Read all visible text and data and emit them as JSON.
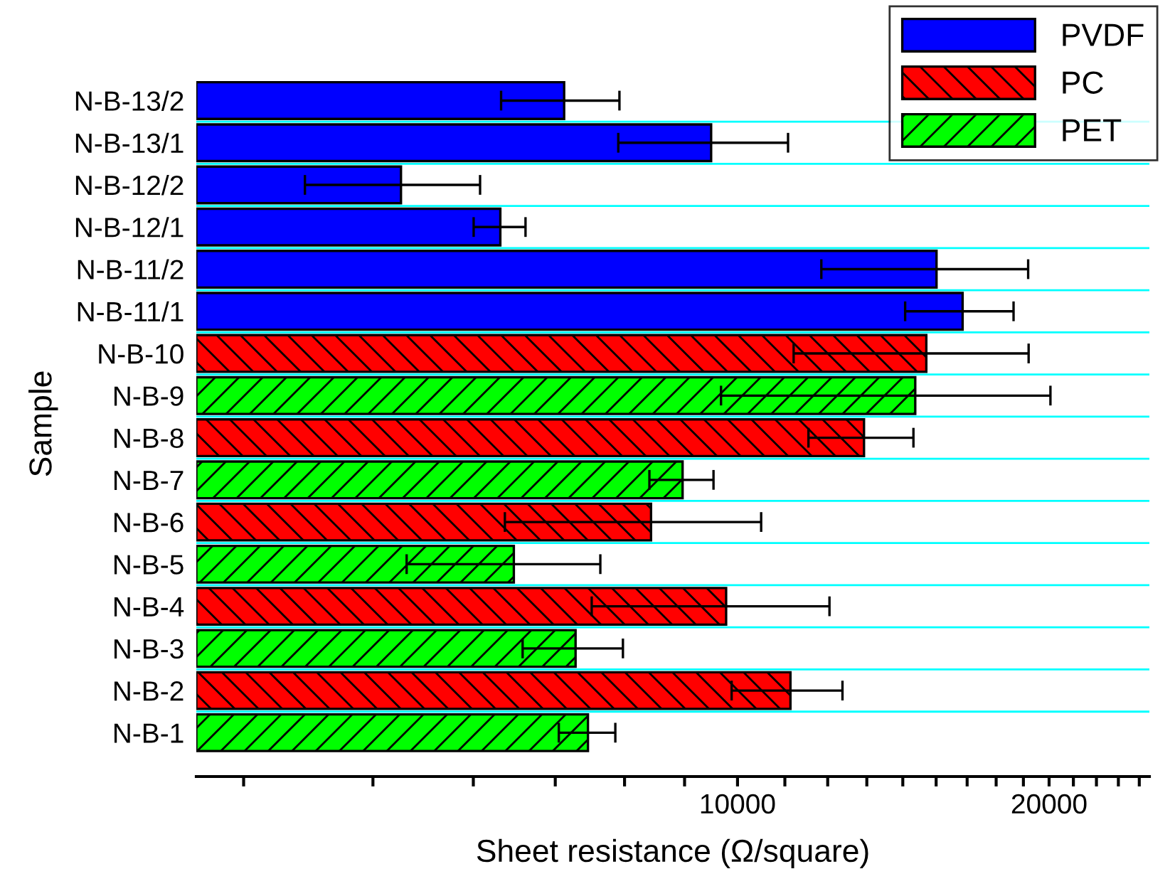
{
  "chart_data": {
    "type": "bar",
    "orientation": "horizontal",
    "log": "x",
    "xlabel": "Sheet resistance (Ω/square)",
    "ylabel": "Sample",
    "categories": [
      "N-B-13/2",
      "N-B-13/1",
      "N-B-12/2",
      "N-B-12/1",
      "N-B-11/2",
      "N-B-11/1",
      "N-B-10",
      "N-B-9",
      "N-B-8",
      "N-B-7",
      "N-B-6",
      "N-B-5",
      "N-B-4",
      "N-B-3",
      "N-B-2",
      "N-B-1"
    ],
    "series": [
      {
        "name": "PVDF",
        "color": "#0000ff",
        "values": [
          6800,
          9430,
          4730,
          5900,
          15570,
          16500,
          null,
          null,
          null,
          null,
          null,
          null,
          null,
          null,
          null,
          null
        ],
        "errors": [
          890,
          1760,
          910,
          340,
          3520,
          1980,
          null,
          null,
          null,
          null,
          null,
          null,
          null,
          null,
          null,
          null
        ]
      },
      {
        "name": "PC",
        "color": "#ff0000",
        "values": [
          null,
          null,
          null,
          null,
          null,
          null,
          15220,
          null,
          13250,
          null,
          8250,
          null,
          9750,
          null,
          11250,
          null
        ],
        "errors": [
          null,
          null,
          null,
          null,
          null,
          null,
          3890,
          null,
          1540,
          null,
          2290,
          null,
          2520,
          null,
          1380,
          null
        ]
      },
      {
        "name": "PET",
        "color": "#00ff00",
        "values": [
          null,
          null,
          null,
          null,
          null,
          null,
          null,
          14850,
          null,
          8850,
          null,
          6080,
          null,
          6975,
          null,
          7170
        ],
        "errors": [
          null,
          null,
          null,
          null,
          null,
          null,
          null,
          5210,
          null,
          630,
          null,
          1290,
          null,
          775,
          null,
          450
        ]
      }
    ],
    "xlim": [
      3000,
      25000
    ],
    "xticks": [
      {
        "value": 3333,
        "label": null
      },
      {
        "value": 4444,
        "label": null
      },
      {
        "value": 5556,
        "label": null
      },
      {
        "value": 6667,
        "label": null
      },
      {
        "value": 7778,
        "label": null
      },
      {
        "value": 8889,
        "label": null
      },
      10000,
      {
        "value": 11111,
        "label": null
      },
      {
        "value": 12222,
        "label": null
      },
      {
        "value": 13333,
        "label": null
      },
      {
        "value": 14444,
        "label": null
      },
      {
        "value": 15556,
        "label": null
      },
      {
        "value": 16667,
        "label": null
      },
      {
        "value": 17778,
        "label": null
      },
      {
        "value": 18889,
        "label": null
      },
      20000,
      {
        "value": 21111,
        "label": null
      },
      {
        "value": 22222,
        "label": null
      },
      {
        "value": 23333,
        "label": null
      },
      {
        "value": 24444,
        "label": null
      }
    ],
    "grid": "y",
    "legend": "top right"
  }
}
